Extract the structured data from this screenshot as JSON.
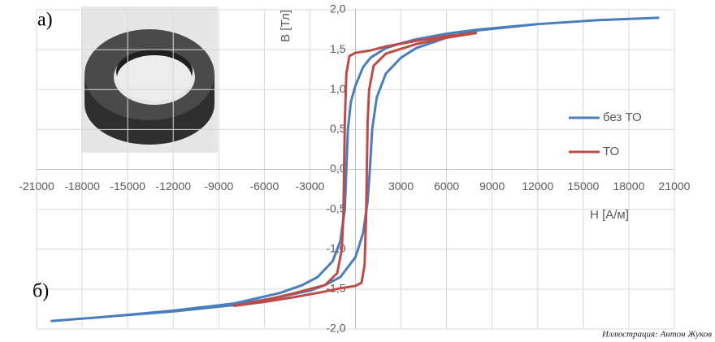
{
  "chart_data": {
    "type": "line",
    "x_label": "H [А/м]",
    "y_label": "B [Тл]",
    "annotations": [
      "а)",
      "б)",
      "Иллюстрация: Антон Жуков"
    ],
    "xlim": [
      -21000,
      21000
    ],
    "ylim": [
      -2,
      2
    ],
    "xticks": [
      -21000,
      -18000,
      -15000,
      -12000,
      -9000,
      -6000,
      -3000,
      3000,
      6000,
      9000,
      12000,
      15000,
      18000,
      21000
    ],
    "yticks": [
      {
        "value": 2,
        "label": "2,0"
      },
      {
        "value": 1.5,
        "label": "1,5"
      },
      {
        "value": 1,
        "label": "1,0"
      },
      {
        "value": 0.5,
        "label": "0,5"
      },
      {
        "value": 0,
        "label": "0,0"
      },
      {
        "value": -0.5,
        "label": "-0,5"
      },
      {
        "value": -1,
        "label": "-1,0"
      },
      {
        "value": -1.5,
        "label": "-1,5"
      },
      {
        "value": -2,
        "label": "-2,0"
      }
    ],
    "grid": true,
    "legend": "right",
    "series": [
      {
        "name": "без ТО",
        "color": "#4a7ebb",
        "x": [
          20000,
          16000,
          12000,
          8000,
          6000,
          4000,
          3000,
          2000,
          1000,
          500,
          0,
          -300,
          -500,
          -600,
          -700,
          -1000,
          -1500,
          -2500,
          -3500,
          -5000,
          -8000,
          -12000,
          -16000,
          -20000,
          -16000,
          -12000,
          -8000,
          -5000,
          -3000,
          -2000,
          -1000,
          0,
          500,
          800,
          950,
          1100,
          1400,
          2000,
          3000,
          4000,
          6000,
          8000,
          12000,
          16000,
          20000
        ],
        "values": [
          1.9,
          1.87,
          1.82,
          1.75,
          1.7,
          1.63,
          1.58,
          1.52,
          1.4,
          1.28,
          1.05,
          0.85,
          0.5,
          0,
          -0.5,
          -0.9,
          -1.15,
          -1.35,
          -1.45,
          -1.55,
          -1.68,
          -1.77,
          -1.84,
          -1.9,
          -1.84,
          -1.78,
          -1.7,
          -1.6,
          -1.52,
          -1.45,
          -1.35,
          -1.1,
          -0.8,
          -0.4,
          0,
          0.5,
          0.9,
          1.2,
          1.4,
          1.52,
          1.65,
          1.74,
          1.82,
          1.87,
          1.9
        ]
      },
      {
        "name": "ТО",
        "color": "#be4b48",
        "x": [
          8000,
          6000,
          4000,
          2000,
          1000,
          0,
          -400,
          -600,
          -700,
          -750,
          -800,
          -900,
          -1200,
          -2000,
          -4000,
          -6000,
          -8000,
          -6000,
          -4000,
          -2000,
          -1000,
          0,
          400,
          600,
          700,
          750,
          800,
          900,
          1200,
          2000,
          4000,
          6000,
          8000
        ],
        "values": [
          1.71,
          1.67,
          1.61,
          1.54,
          1.49,
          1.46,
          1.42,
          1.2,
          0.6,
          0,
          -0.6,
          -1.0,
          -1.3,
          -1.45,
          -1.55,
          -1.64,
          -1.71,
          -1.66,
          -1.6,
          -1.53,
          -1.49,
          -1.46,
          -1.42,
          -1.2,
          -0.6,
          0,
          0.6,
          1.0,
          1.3,
          1.45,
          1.57,
          1.65,
          1.71
        ]
      }
    ]
  }
}
